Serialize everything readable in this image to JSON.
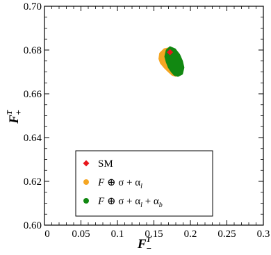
{
  "chart_data": {
    "type": "scatter",
    "xlabel": "F",
    "xlabel_sup": "T",
    "xlabel_sub": "−",
    "ylabel": "F",
    "ylabel_sup": "T",
    "ylabel_sub": "+",
    "xlim": [
      0,
      0.3
    ],
    "ylim": [
      0.6,
      0.7
    ],
    "x_ticks": [
      0,
      0.05,
      0.1,
      0.15,
      0.2,
      0.25,
      0.3
    ],
    "x_tick_labels": [
      "0",
      "0.05",
      "0.1",
      "0.15",
      "0.2",
      "0.25",
      "0.3"
    ],
    "y_ticks": [
      0.6,
      0.62,
      0.64,
      0.66,
      0.68,
      0.7
    ],
    "y_tick_labels": [
      "0.60",
      "0.62",
      "0.64",
      "0.66",
      "0.68",
      "0.70"
    ],
    "grid": false,
    "legend_position": "bottom-left",
    "series": [
      {
        "name": "F ⊕ σ + αl",
        "name_parts": [
          "F",
          " ⊕ σ + α",
          "l",
          "",
          ""
        ],
        "color": "#f5a623",
        "marker": "circle",
        "region": [
          [
            0.158,
            0.6785
          ],
          [
            0.164,
            0.6805
          ],
          [
            0.171,
            0.681
          ],
          [
            0.176,
            0.68
          ],
          [
            0.179,
            0.677
          ],
          [
            0.181,
            0.673
          ],
          [
            0.183,
            0.67
          ],
          [
            0.18,
            0.668
          ],
          [
            0.175,
            0.6685
          ],
          [
            0.17,
            0.67
          ],
          [
            0.164,
            0.672
          ],
          [
            0.159,
            0.674
          ],
          [
            0.157,
            0.676
          ]
        ]
      },
      {
        "name": "F ⊕ σ + αl + αb",
        "name_parts": [
          "F",
          " ⊕ σ + α",
          "l",
          " + α",
          "b"
        ],
        "color": "#118811",
        "marker": "circle",
        "region": [
          [
            0.167,
            0.68
          ],
          [
            0.172,
            0.6815
          ],
          [
            0.179,
            0.6805
          ],
          [
            0.185,
            0.678
          ],
          [
            0.189,
            0.675
          ],
          [
            0.191,
            0.672
          ],
          [
            0.189,
            0.669
          ],
          [
            0.183,
            0.668
          ],
          [
            0.178,
            0.6685
          ],
          [
            0.174,
            0.67
          ],
          [
            0.17,
            0.672
          ],
          [
            0.167,
            0.6745
          ],
          [
            0.165,
            0.677
          ]
        ]
      },
      {
        "name": "SM",
        "name_parts": [
          "",
          "SM",
          "",
          "",
          ""
        ],
        "color": "#e8161c",
        "marker": "diamond",
        "points": [
          [
            0.172,
            0.679
          ]
        ]
      }
    ]
  }
}
